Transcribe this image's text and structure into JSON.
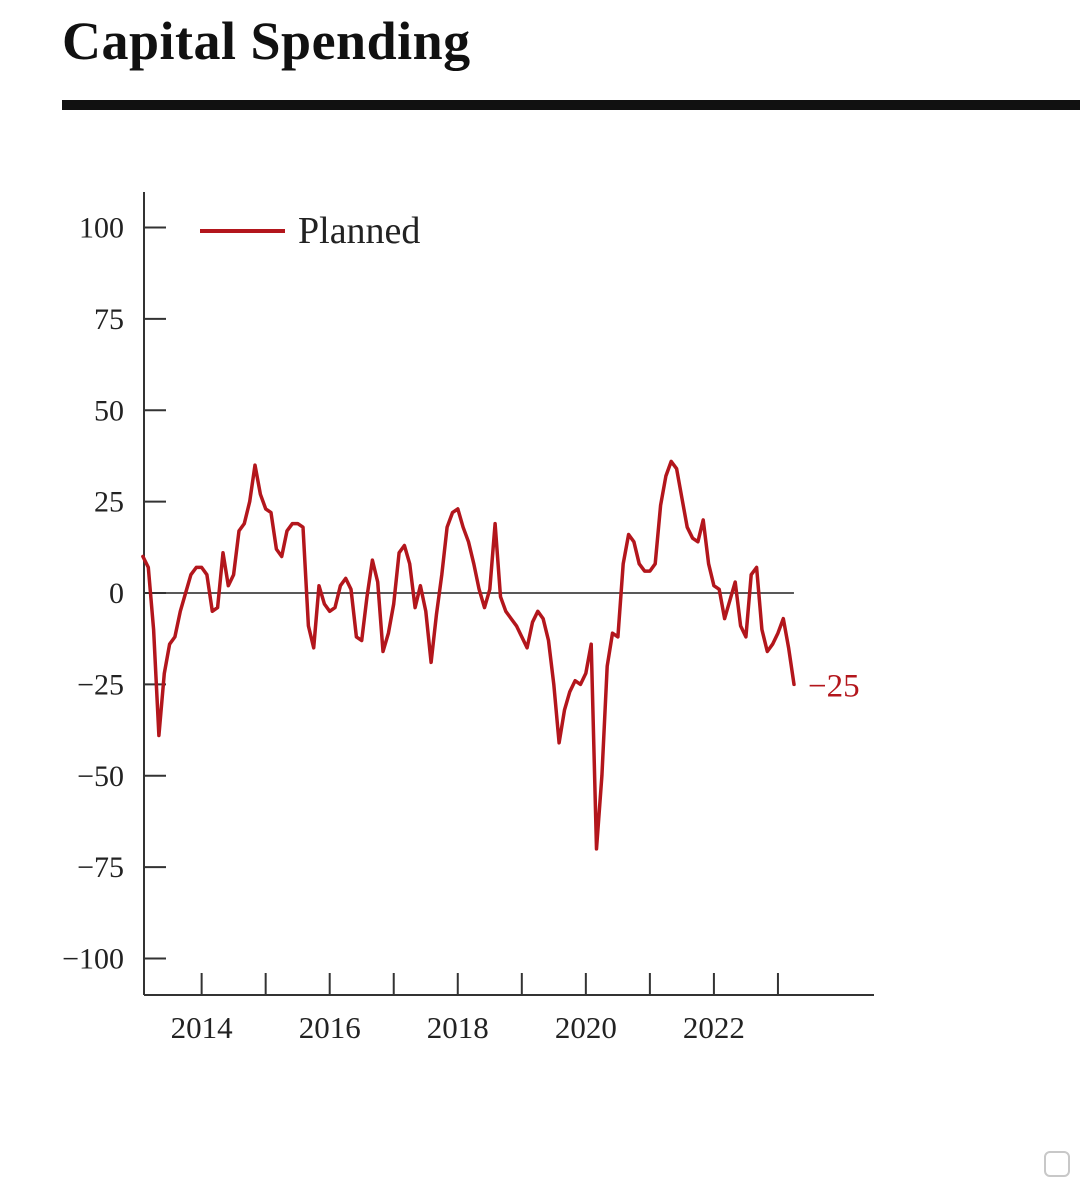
{
  "header": {
    "title": "Capital Spending"
  },
  "chart_data": {
    "type": "line",
    "title": "Capital Spending",
    "xlabel": "",
    "ylabel": "",
    "ylim": [
      -110,
      110
    ],
    "xlim": [
      2013.1,
      2024.5
    ],
    "yticks": [
      100,
      75,
      50,
      25,
      0,
      -25,
      -50,
      -75,
      -100
    ],
    "ytick_labels": [
      "100",
      "75",
      "50",
      "25",
      "0",
      "−25",
      "−50",
      "−75",
      "−100"
    ],
    "xticks": [
      2014,
      2015,
      2016,
      2017,
      2018,
      2019,
      2020,
      2021,
      2022,
      2023
    ],
    "xtick_labels": [
      {
        "x": 2014,
        "label": "2014"
      },
      {
        "x": 2016,
        "label": "2016"
      },
      {
        "x": 2018,
        "label": "2018"
      },
      {
        "x": 2020,
        "label": "2020"
      },
      {
        "x": 2022,
        "label": "2022"
      }
    ],
    "grid": false,
    "zero_line": true,
    "legend": "top-left",
    "series": [
      {
        "name": "Planned",
        "color": "#b3161c",
        "x": [
          2013.083,
          2013.167,
          2013.25,
          2013.333,
          2013.417,
          2013.5,
          2013.583,
          2013.667,
          2013.75,
          2013.833,
          2013.917,
          2014.0,
          2014.083,
          2014.167,
          2014.25,
          2014.333,
          2014.417,
          2014.5,
          2014.583,
          2014.667,
          2014.75,
          2014.833,
          2014.917,
          2015.0,
          2015.083,
          2015.167,
          2015.25,
          2015.333,
          2015.417,
          2015.5,
          2015.583,
          2015.667,
          2015.75,
          2015.833,
          2015.917,
          2016.0,
          2016.083,
          2016.167,
          2016.25,
          2016.333,
          2016.417,
          2016.5,
          2016.583,
          2016.667,
          2016.75,
          2016.833,
          2016.917,
          2017.0,
          2017.083,
          2017.167,
          2017.25,
          2017.333,
          2017.417,
          2017.5,
          2017.583,
          2017.667,
          2017.75,
          2017.833,
          2017.917,
          2018.0,
          2018.083,
          2018.167,
          2018.25,
          2018.333,
          2018.417,
          2018.5,
          2018.583,
          2018.667,
          2018.75,
          2018.833,
          2018.917,
          2019.0,
          2019.083,
          2019.167,
          2019.25,
          2019.333,
          2019.417,
          2019.5,
          2019.583,
          2019.667,
          2019.75,
          2019.833,
          2019.917,
          2020.0,
          2020.083,
          2020.167,
          2020.25,
          2020.333,
          2020.417,
          2020.5,
          2020.583,
          2020.667,
          2020.75,
          2020.833,
          2020.917,
          2021.0,
          2021.083,
          2021.167,
          2021.25,
          2021.333,
          2021.417,
          2021.5,
          2021.583,
          2021.667,
          2021.75,
          2021.833,
          2021.917,
          2022.0,
          2022.083,
          2022.167,
          2022.25,
          2022.333,
          2022.417,
          2022.5,
          2022.583,
          2022.667,
          2022.75,
          2022.833,
          2022.917,
          2023.0,
          2023.083,
          2023.167,
          2023.25
        ],
        "values": [
          10,
          7,
          -10,
          -39,
          -22,
          -14,
          -12,
          -5,
          0,
          5,
          7,
          7,
          5,
          -5,
          -4,
          11,
          2,
          5,
          17,
          19,
          25,
          35,
          27,
          23,
          22,
          12,
          10,
          17,
          19,
          19,
          18,
          -9,
          -15,
          2,
          -3,
          -5,
          -4,
          2,
          4,
          1,
          -12,
          -13,
          -1,
          9,
          3,
          -16,
          -11,
          -3,
          11,
          13,
          8,
          -4,
          2,
          -5,
          -19,
          -6,
          5,
          18,
          22,
          23,
          18,
          14,
          8,
          1,
          -4,
          1,
          19,
          -1,
          -5,
          -7,
          -9,
          -12,
          -15,
          -8,
          -5,
          -7,
          -13,
          -25,
          -41,
          -32,
          -27,
          -24,
          -25,
          -22,
          -14,
          -70,
          -50,
          -20,
          -11,
          -12,
          8,
          16,
          14,
          8,
          6,
          6,
          8,
          24,
          32,
          36,
          34,
          26,
          18,
          15,
          14,
          20,
          8,
          2,
          1,
          -7,
          -2,
          3,
          -9,
          -12,
          5,
          7,
          -10,
          -16,
          -14,
          -11,
          -7,
          -15,
          -25
        ]
      }
    ],
    "annotations": [
      {
        "text": "−25",
        "x": 2023.25,
        "y": -25
      }
    ]
  }
}
